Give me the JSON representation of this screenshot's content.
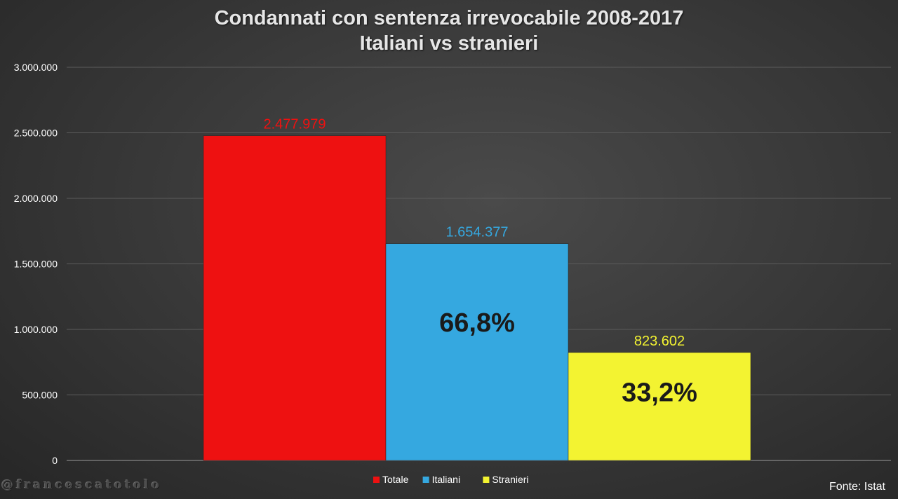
{
  "chart_data": {
    "type": "bar",
    "title": "Condannati con sentenza irrevocabile 2008-2017",
    "subtitle": "Italiani vs stranieri",
    "ylim": [
      0,
      3000000
    ],
    "yticks": [
      0,
      500000,
      1000000,
      1500000,
      2000000,
      2500000,
      3000000
    ],
    "ytick_labels": [
      "0",
      "500.000",
      "1.000.000",
      "1.500.000",
      "2.000.000",
      "2.500.000",
      "3.000.000"
    ],
    "grid": true,
    "legend_position": "bottom",
    "series": [
      {
        "name": "Totale",
        "value": 2477979,
        "label": "2.477.979",
        "color": "#ee1111",
        "inner_label": ""
      },
      {
        "name": "Italiani",
        "value": 1654377,
        "label": "1.654.377",
        "color": "#35a8e0",
        "inner_label": "66,8%"
      },
      {
        "name": "Stranieri",
        "value": 823602,
        "label": "823.602",
        "color": "#f3f331",
        "inner_label": "33,2%"
      }
    ]
  },
  "source_note": "Fonte: Istat",
  "watermark": "@francescatotolo"
}
